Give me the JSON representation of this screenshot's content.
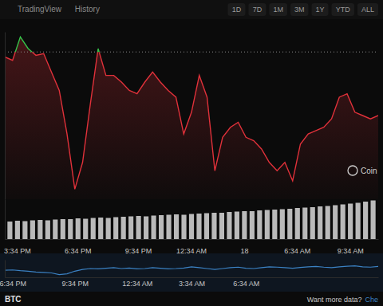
{
  "header": {
    "tabs": [
      "TradingView",
      "History"
    ],
    "ranges": [
      "1D",
      "7D",
      "1M",
      "3M",
      "1Y",
      "YTD",
      "ALL"
    ]
  },
  "watermark": "Coin",
  "symbol": "BTC",
  "footer": {
    "text": "Want more data?",
    "link": "Che"
  },
  "chart_data": [
    {
      "type": "line",
      "categories": [
        null,
        null,
        null,
        null,
        null,
        null,
        null,
        null,
        null,
        null,
        null,
        null,
        null,
        null,
        null,
        null,
        null,
        null,
        null,
        null,
        null,
        null,
        null,
        null,
        null,
        null,
        null,
        null,
        null,
        null,
        null,
        null,
        null,
        null,
        null,
        null,
        null,
        null,
        null,
        null,
        null,
        null,
        null,
        null,
        null,
        null,
        null,
        null,
        null
      ],
      "series": [
        {
          "color": "#e0313a",
          "values": [
            85,
            83,
            97,
            90,
            86,
            87,
            76,
            65,
            39,
            6,
            22,
            57,
            90,
            74,
            74,
            70,
            65,
            63,
            70,
            76,
            70,
            65,
            61,
            39,
            52,
            74,
            61,
            17,
            37,
            43,
            46,
            37,
            35,
            30,
            22,
            17,
            22,
            11,
            33,
            39,
            41,
            43,
            48,
            61,
            63,
            52,
            50,
            48,
            50
          ]
        }
      ],
      "baseline": 88,
      "ylim": [
        0,
        100
      ],
      "tick_labels": false
    },
    {
      "type": "bar",
      "categories": [
        null,
        "3:34 PM",
        null,
        null,
        null,
        null,
        null,
        null,
        null,
        "6:34 PM",
        null,
        null,
        null,
        null,
        null,
        null,
        null,
        "9:34 PM",
        null,
        null,
        null,
        null,
        null,
        null,
        "12:34 AM",
        null,
        null,
        null,
        null,
        null,
        null,
        "18",
        null,
        null,
        null,
        null,
        null,
        null,
        "6:34 AM",
        null,
        null,
        null,
        null,
        null,
        null,
        "9:34 AM",
        null,
        null,
        null
      ],
      "values": [
        44,
        46,
        45,
        47,
        48,
        47,
        49,
        50,
        50,
        52,
        51,
        53,
        54,
        53,
        55,
        56,
        57,
        58,
        57,
        59,
        60,
        61,
        62,
        61,
        63,
        64,
        65,
        66,
        66,
        68,
        69,
        70,
        70,
        72,
        73,
        74,
        75,
        76,
        78,
        79,
        80,
        82,
        83,
        85,
        87,
        89,
        91,
        94,
        97
      ],
      "color": "#d9d9d9",
      "ylim": [
        0,
        100
      ],
      "tick_labels": "x"
    },
    {
      "type": "line",
      "categories": [
        null,
        "6:34 PM",
        null,
        null,
        null,
        null,
        null,
        null,
        null,
        "9:34 PM",
        null,
        null,
        null,
        null,
        null,
        null,
        null,
        "12:34 AM",
        null,
        null,
        null,
        null,
        null,
        null,
        "3:34 AM",
        null,
        null,
        null,
        null,
        null,
        null,
        "6:34 AM",
        null,
        null,
        null,
        null,
        null,
        null,
        null,
        null,
        null,
        null,
        null,
        null,
        null,
        null,
        null,
        null,
        null
      ],
      "series": [
        {
          "color": "#3b82c4",
          "values": [
            40,
            42,
            38,
            35,
            30,
            28,
            25,
            15,
            20,
            35,
            45,
            50,
            48,
            52,
            55,
            50,
            53,
            48,
            50,
            55,
            52,
            48,
            50,
            53,
            60,
            55,
            50,
            45,
            50,
            55,
            58,
            52,
            50,
            55,
            60,
            58,
            55,
            52,
            56,
            60,
            62,
            58,
            55,
            60,
            63,
            65,
            60,
            58,
            62
          ]
        }
      ],
      "ylim": [
        0,
        100
      ],
      "tick_labels": "x"
    }
  ]
}
